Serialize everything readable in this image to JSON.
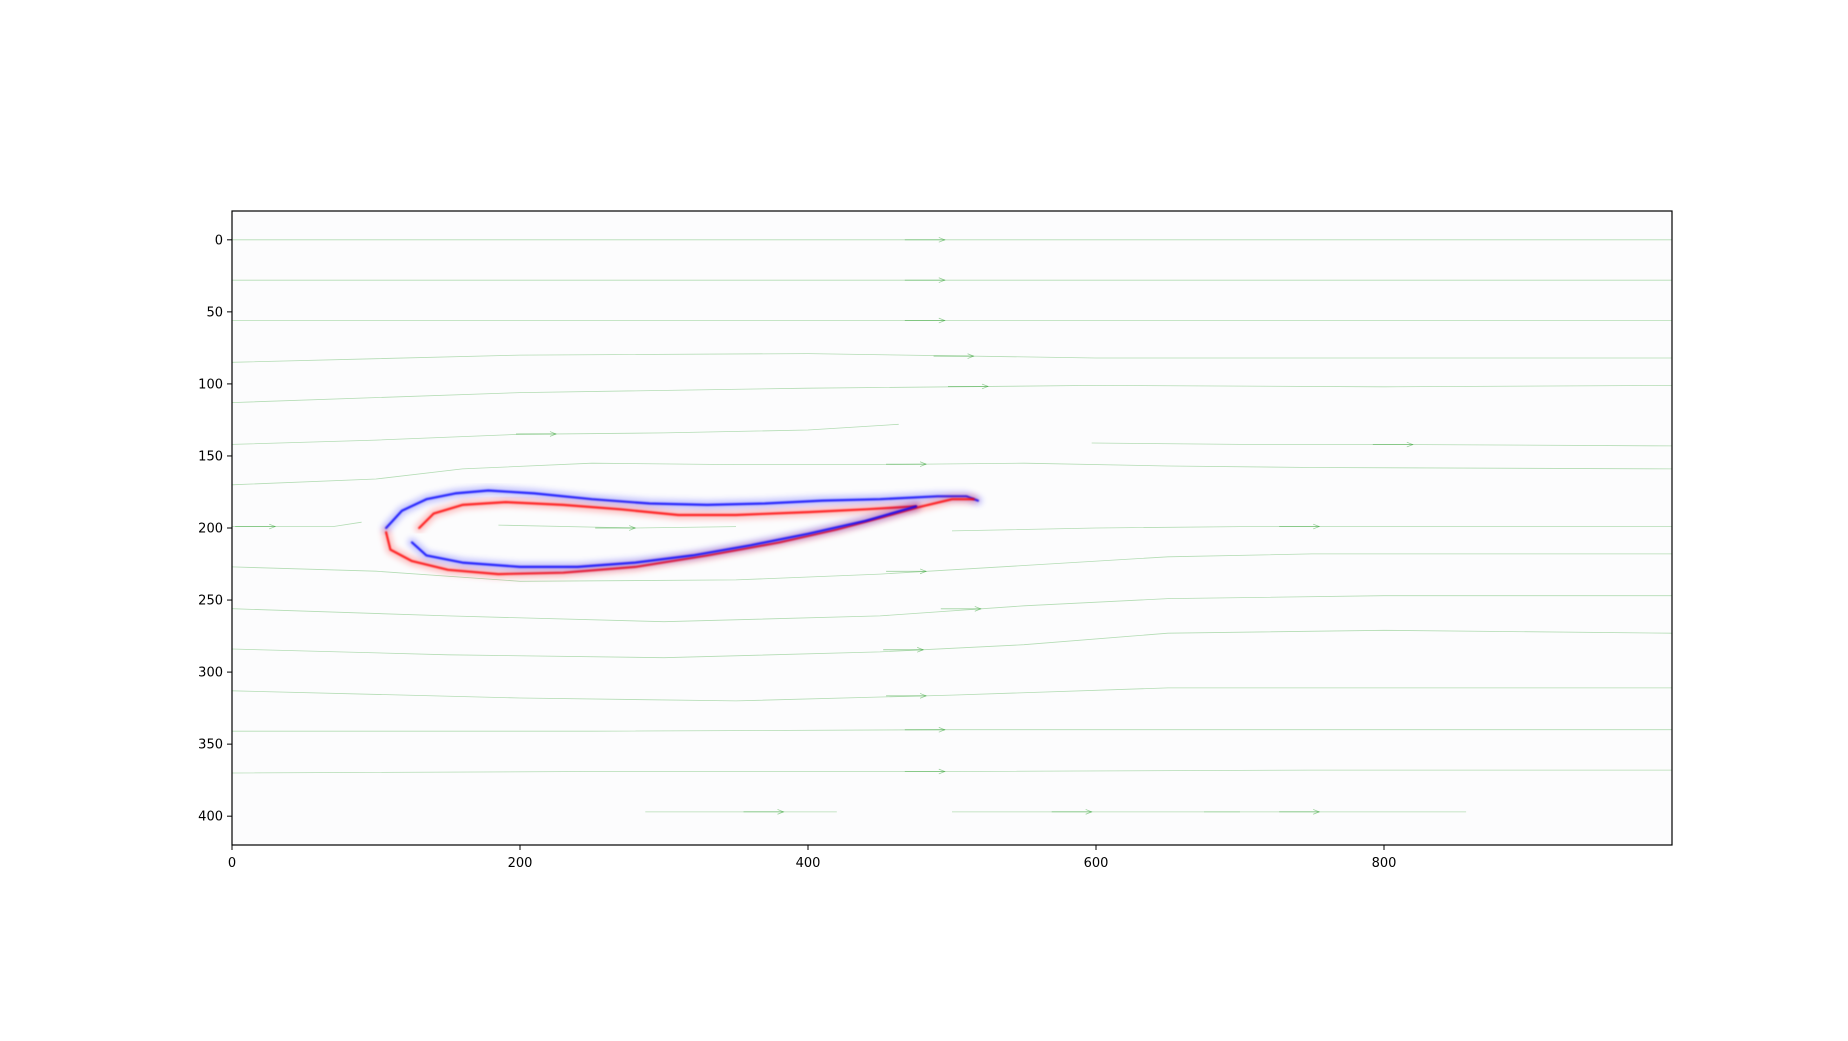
{
  "chart_data": {
    "type": "heatmap",
    "title": "",
    "xlabel": "",
    "ylabel": "",
    "xlim": [
      0,
      1000
    ],
    "ylim": [
      420,
      -20
    ],
    "y_axis_inverted": true,
    "grid": false,
    "legend": "none",
    "x_ticks": [
      "0",
      "200",
      "400",
      "600",
      "800"
    ],
    "y_ticks": [
      "0",
      "50",
      "100",
      "150",
      "200",
      "250",
      "300",
      "350",
      "400"
    ],
    "colormap": "bwr",
    "colors": {
      "positive": "#ff0000",
      "negative": "#0000ff",
      "streamlines": "#2ca02c",
      "background": "#fcfcfd"
    },
    "vorticity_sheets": [
      {
        "sign": "negative",
        "name": "upper-surface-outer",
        "points": [
          [
            107,
            200
          ],
          [
            118,
            188
          ],
          [
            135,
            180
          ],
          [
            155,
            176
          ],
          [
            178,
            174
          ],
          [
            210,
            176
          ],
          [
            250,
            180
          ],
          [
            290,
            183
          ],
          [
            330,
            184
          ],
          [
            370,
            183
          ],
          [
            410,
            181
          ],
          [
            450,
            180
          ],
          [
            490,
            178
          ],
          [
            510,
            178
          ],
          [
            518,
            181
          ]
        ]
      },
      {
        "sign": "positive",
        "name": "lower-surface-outer",
        "points": [
          [
            107,
            203
          ],
          [
            110,
            215
          ],
          [
            125,
            223
          ],
          [
            150,
            229
          ],
          [
            185,
            232
          ],
          [
            230,
            231
          ],
          [
            280,
            227
          ],
          [
            330,
            219
          ],
          [
            380,
            210
          ],
          [
            420,
            201
          ],
          [
            450,
            193
          ],
          [
            475,
            186
          ],
          [
            500,
            180
          ],
          [
            515,
            180
          ]
        ]
      },
      {
        "sign": "positive",
        "name": "upper-surface-inner",
        "points": [
          [
            130,
            200
          ],
          [
            140,
            190
          ],
          [
            160,
            184
          ],
          [
            190,
            182
          ],
          [
            230,
            184
          ],
          [
            270,
            187
          ],
          [
            310,
            191
          ],
          [
            350,
            191
          ],
          [
            400,
            189
          ],
          [
            440,
            187
          ],
          [
            475,
            185
          ]
        ]
      },
      {
        "sign": "negative",
        "name": "lower-surface-inner",
        "points": [
          [
            125,
            210
          ],
          [
            135,
            219
          ],
          [
            160,
            224
          ],
          [
            200,
            227
          ],
          [
            240,
            227
          ],
          [
            280,
            224
          ],
          [
            320,
            219
          ],
          [
            360,
            212
          ],
          [
            400,
            204
          ],
          [
            440,
            195
          ],
          [
            475,
            185
          ]
        ]
      }
    ],
    "streamlines": [
      {
        "points": [
          [
            0,
            0
          ],
          [
            250,
            0
          ],
          [
            500,
            0
          ],
          [
            750,
            0
          ],
          [
            1000,
            0
          ]
        ],
        "arrow_at": 495
      },
      {
        "points": [
          [
            0,
            28
          ],
          [
            250,
            28
          ],
          [
            500,
            28
          ],
          [
            750,
            28
          ],
          [
            1000,
            28
          ]
        ],
        "arrow_at": 495
      },
      {
        "points": [
          [
            0,
            56
          ],
          [
            250,
            56
          ],
          [
            500,
            56
          ],
          [
            750,
            56
          ],
          [
            1000,
            56
          ]
        ],
        "arrow_at": 495
      },
      {
        "points": [
          [
            0,
            85
          ],
          [
            200,
            80
          ],
          [
            400,
            79
          ],
          [
            600,
            82
          ],
          [
            800,
            82
          ],
          [
            1000,
            82
          ]
        ],
        "arrow_at": 515
      },
      {
        "points": [
          [
            0,
            113
          ],
          [
            200,
            106
          ],
          [
            400,
            103
          ],
          [
            600,
            101
          ],
          [
            800,
            102
          ],
          [
            1000,
            101
          ]
        ],
        "arrow_at": 525
      },
      {
        "points": [
          [
            0,
            142
          ],
          [
            100,
            139
          ],
          [
            200,
            135
          ],
          [
            300,
            134
          ],
          [
            400,
            132
          ],
          [
            463,
            128
          ]
        ],
        "arrow_at": 225
      },
      {
        "points": [
          [
            0,
            170
          ],
          [
            100,
            166
          ],
          [
            160,
            159
          ],
          [
            250,
            155
          ],
          [
            350,
            156
          ],
          [
            450,
            156
          ],
          [
            550,
            155
          ],
          [
            650,
            157
          ],
          [
            750,
            158
          ],
          [
            1000,
            159
          ]
        ],
        "arrow_at": 482
      },
      {
        "points": [
          [
            0,
            199
          ],
          [
            70,
            199
          ],
          [
            90,
            196
          ]
        ],
        "arrow_at": 30
      },
      {
        "points": [
          [
            185,
            198
          ],
          [
            280,
            200
          ],
          [
            350,
            199
          ]
        ],
        "arrow_at": 280
      },
      {
        "points": [
          [
            500,
            202
          ],
          [
            600,
            200
          ],
          [
            700,
            199
          ],
          [
            800,
            199
          ],
          [
            1000,
            199
          ]
        ],
        "arrow_at": 755
      },
      {
        "points": [
          [
            597,
            141
          ],
          [
            700,
            142
          ],
          [
            800,
            142
          ],
          [
            1000,
            143
          ]
        ],
        "arrow_at": 820
      },
      {
        "points": [
          [
            0,
            227
          ],
          [
            100,
            230
          ],
          [
            200,
            237
          ],
          [
            350,
            236
          ],
          [
            450,
            232
          ],
          [
            550,
            226
          ],
          [
            650,
            220
          ],
          [
            750,
            218
          ],
          [
            1000,
            218
          ]
        ],
        "arrow_at": 482
      },
      {
        "points": [
          [
            0,
            256
          ],
          [
            150,
            261
          ],
          [
            300,
            265
          ],
          [
            450,
            261
          ],
          [
            550,
            254
          ],
          [
            650,
            249
          ],
          [
            800,
            247
          ],
          [
            1000,
            247
          ]
        ],
        "arrow_at": 520
      },
      {
        "points": [
          [
            0,
            284
          ],
          [
            150,
            288
          ],
          [
            300,
            290
          ],
          [
            450,
            286
          ],
          [
            550,
            281
          ],
          [
            650,
            273
          ],
          [
            800,
            271
          ],
          [
            1000,
            273
          ]
        ],
        "arrow_at": 480
      },
      {
        "points": [
          [
            0,
            313
          ],
          [
            200,
            318
          ],
          [
            350,
            320
          ],
          [
            500,
            316
          ],
          [
            650,
            311
          ],
          [
            800,
            311
          ],
          [
            1000,
            311
          ]
        ],
        "arrow_at": 482
      },
      {
        "points": [
          [
            0,
            341
          ],
          [
            250,
            341
          ],
          [
            500,
            340
          ],
          [
            750,
            340
          ],
          [
            1000,
            340
          ]
        ],
        "arrow_at": 495
      },
      {
        "points": [
          [
            0,
            370
          ],
          [
            250,
            369
          ],
          [
            500,
            369
          ],
          [
            750,
            368
          ],
          [
            1000,
            368
          ]
        ],
        "arrow_at": 495
      },
      {
        "points": [
          [
            287,
            397
          ],
          [
            350,
            397
          ],
          [
            420,
            397
          ]
        ],
        "arrow_at": 383
      },
      {
        "points": [
          [
            500,
            397
          ],
          [
            700,
            397
          ],
          [
            857,
            397
          ]
        ],
        "arrow_at": 597
      },
      {
        "points": [
          [
            675,
            397
          ],
          [
            700,
            397
          ]
        ],
        "arrow_at": 755
      }
    ]
  }
}
